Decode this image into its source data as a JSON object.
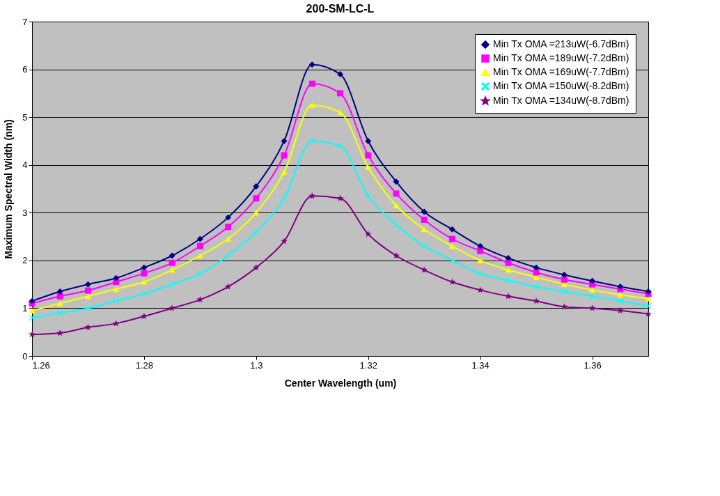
{
  "chart_data": {
    "type": "line",
    "title": "200-SM-LC-L",
    "xlabel": "Center Wavelength (um)",
    "ylabel": "Maximum Spectral Width (nm)",
    "x": [
      1.26,
      1.265,
      1.27,
      1.275,
      1.28,
      1.285,
      1.29,
      1.295,
      1.3,
      1.305,
      1.31,
      1.315,
      1.32,
      1.325,
      1.33,
      1.335,
      1.34,
      1.345,
      1.35,
      1.355,
      1.36,
      1.365,
      1.37
    ],
    "series": [
      {
        "name": "Min Tx OMA =213uW(-6.7dBm)",
        "color": "#000080",
        "marker": "diamond",
        "values": [
          1.15,
          1.35,
          1.5,
          1.63,
          1.85,
          2.1,
          2.45,
          2.9,
          3.55,
          4.5,
          6.1,
          5.9,
          4.5,
          3.65,
          3.02,
          2.65,
          2.3,
          2.05,
          1.85,
          1.7,
          1.57,
          1.45,
          1.35
        ]
      },
      {
        "name": "Min Tx OMA =189uW(-7.2dBm)",
        "color": "#ff00ff",
        "marker": "square",
        "values": [
          1.1,
          1.25,
          1.37,
          1.55,
          1.73,
          1.95,
          2.3,
          2.7,
          3.3,
          4.2,
          5.7,
          5.5,
          4.2,
          3.4,
          2.85,
          2.45,
          2.2,
          1.95,
          1.75,
          1.6,
          1.5,
          1.4,
          1.3
        ]
      },
      {
        "name": "Min Tx OMA =169uW(-7.7dBm)",
        "color": "#ffff00",
        "marker": "triangle",
        "values": [
          0.95,
          1.1,
          1.25,
          1.4,
          1.55,
          1.8,
          2.1,
          2.45,
          3.0,
          3.85,
          5.25,
          5.1,
          3.95,
          3.15,
          2.65,
          2.3,
          2.0,
          1.8,
          1.65,
          1.5,
          1.38,
          1.28,
          1.2
        ]
      },
      {
        "name": "Min Tx OMA =150uW(-8.2dBm)",
        "color": "#00ffff",
        "marker": "cross",
        "values": [
          0.8,
          0.9,
          1.0,
          1.15,
          1.3,
          1.5,
          1.72,
          2.1,
          2.6,
          3.3,
          4.5,
          4.4,
          3.35,
          2.75,
          2.3,
          2.0,
          1.72,
          1.58,
          1.45,
          1.35,
          1.25,
          1.15,
          1.05
        ]
      },
      {
        "name": "Min Tx OMA =134uW(-8.7dBm)",
        "color": "#800080",
        "marker": "star",
        "values": [
          0.45,
          0.48,
          0.6,
          0.68,
          0.83,
          1.0,
          1.18,
          1.45,
          1.85,
          2.4,
          3.35,
          3.3,
          2.55,
          2.1,
          1.8,
          1.55,
          1.38,
          1.25,
          1.15,
          1.03,
          1.0,
          0.95,
          0.88
        ]
      }
    ],
    "xlim": [
      1.26,
      1.37
    ],
    "xticks": [
      1.26,
      1.28,
      1.3,
      1.32,
      1.34,
      1.36
    ],
    "ylim": [
      0,
      7
    ],
    "yticks": [
      0,
      1,
      2,
      3,
      4,
      5,
      6,
      7
    ],
    "grid": "y",
    "legend": "top right",
    "line_style": "solid"
  }
}
